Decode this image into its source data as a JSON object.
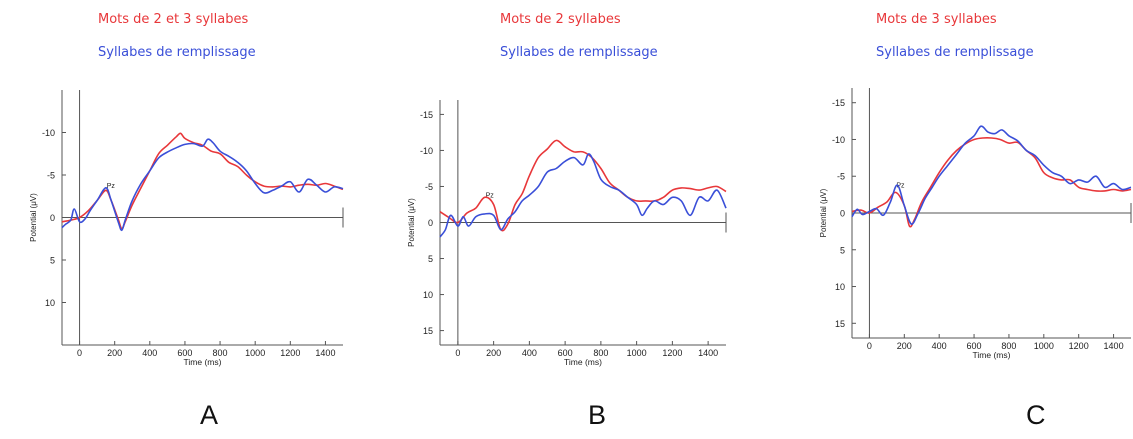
{
  "chart_data": [
    {
      "type": "line",
      "panel_letter": "A",
      "legend": [
        "Mots de 2 et 3 syllabes",
        "Syllabes de remplissage"
      ],
      "electrode_label": "Pz",
      "xlabel": "Time (ms)",
      "ylabel": "Potential (μV)",
      "xlim": [
        -100,
        1500
      ],
      "ylim": [
        -15,
        15
      ],
      "y_inverted": true,
      "xticks": [
        0,
        200,
        400,
        600,
        800,
        1000,
        1200,
        1400
      ],
      "yticks": [
        -10,
        -5,
        0,
        5,
        10
      ],
      "series": [
        {
          "name": "Mots de 2 et 3 syllabes",
          "color": "#e8373a",
          "x": [
            -100,
            -50,
            0,
            50,
            100,
            150,
            180,
            220,
            240,
            260,
            300,
            350,
            400,
            450,
            500,
            550,
            575,
            600,
            650,
            700,
            750,
            800,
            850,
            900,
            950,
            1000,
            1050,
            1100,
            1150,
            1200,
            1250,
            1300,
            1350,
            1400,
            1450,
            1500
          ],
          "y": [
            0.5,
            0.3,
            0,
            -0.8,
            -2.0,
            -3.2,
            -2.0,
            0.2,
            1.3,
            0.5,
            -1.5,
            -3.5,
            -5.5,
            -7.5,
            -8.5,
            -9.5,
            -9.9,
            -9.3,
            -8.8,
            -8.5,
            -7.8,
            -7.5,
            -6.5,
            -6.0,
            -5.0,
            -4.2,
            -3.7,
            -3.6,
            -3.7,
            -3.6,
            -3.8,
            -3.9,
            -3.8,
            -4.0,
            -3.7,
            -3.3
          ]
        },
        {
          "name": "Syllabes de remplissage",
          "color": "#3a4fd8",
          "x": [
            -100,
            -80,
            -50,
            -30,
            0,
            30,
            60,
            100,
            150,
            180,
            220,
            240,
            260,
            300,
            350,
            400,
            450,
            500,
            550,
            600,
            650,
            700,
            730,
            760,
            800,
            850,
            900,
            950,
            1000,
            1050,
            1100,
            1150,
            1200,
            1250,
            1300,
            1350,
            1400,
            1450,
            1500
          ],
          "y": [
            1.2,
            0.8,
            0.3,
            -1.0,
            0.5,
            0.2,
            -0.8,
            -2.0,
            -3.5,
            -2.0,
            0.5,
            1.5,
            0.3,
            -2.0,
            -4.0,
            -5.5,
            -7.0,
            -7.7,
            -8.2,
            -8.6,
            -8.7,
            -8.4,
            -9.2,
            -8.8,
            -7.8,
            -7.2,
            -6.5,
            -5.5,
            -4.0,
            -2.9,
            -3.2,
            -3.7,
            -4.2,
            -3.0,
            -4.5,
            -3.8,
            -3.0,
            -3.6,
            -3.4
          ]
        }
      ]
    },
    {
      "type": "line",
      "panel_letter": "B",
      "legend": [
        "Mots de 2 syllabes",
        "Syllabes de remplissage"
      ],
      "electrode_label": "Pz",
      "xlabel": "Time (ms)",
      "ylabel": "Potential (μV)",
      "xlim": [
        -100,
        1500
      ],
      "ylim": [
        -17,
        17
      ],
      "y_inverted": true,
      "xticks": [
        0,
        200,
        400,
        600,
        800,
        1000,
        1200,
        1400
      ],
      "yticks": [
        -15,
        -10,
        -5,
        0,
        5,
        10,
        15
      ],
      "series": [
        {
          "name": "Mots de 2 syllabes",
          "color": "#e8373a",
          "x": [
            -100,
            -50,
            0,
            50,
            100,
            150,
            200,
            240,
            280,
            320,
            360,
            400,
            450,
            500,
            550,
            600,
            650,
            700,
            750,
            800,
            850,
            900,
            950,
            1000,
            1050,
            1100,
            1150,
            1200,
            1250,
            1300,
            1350,
            1400,
            1450,
            1500
          ],
          "y": [
            -1.5,
            -0.7,
            0,
            -1.3,
            -2.0,
            -3.5,
            -2.5,
            1.0,
            0.2,
            -2.5,
            -4.0,
            -6.5,
            -9.0,
            -10.2,
            -11.4,
            -10.5,
            -9.8,
            -9.8,
            -9.0,
            -7.5,
            -5.5,
            -4.5,
            -3.5,
            -3.0,
            -3.0,
            -3.0,
            -3.5,
            -4.5,
            -4.8,
            -4.7,
            -4.5,
            -4.8,
            -5.0,
            -4.3
          ]
        },
        {
          "name": "Syllabes de remplissage",
          "color": "#3a4fd8",
          "x": [
            -100,
            -70,
            -40,
            0,
            30,
            60,
            100,
            150,
            200,
            240,
            280,
            320,
            360,
            400,
            450,
            500,
            550,
            600,
            650,
            700,
            730,
            760,
            800,
            850,
            900,
            950,
            1000,
            1030,
            1060,
            1100,
            1150,
            1200,
            1250,
            1300,
            1350,
            1400,
            1450,
            1500
          ],
          "y": [
            2.0,
            1.0,
            -1.0,
            0.5,
            -0.8,
            0.5,
            -0.8,
            -1.2,
            -1.0,
            1.0,
            -0.5,
            -1.5,
            -3.0,
            -3.8,
            -5.0,
            -7.0,
            -7.5,
            -8.5,
            -9.0,
            -8.0,
            -9.5,
            -8.5,
            -6.0,
            -5.0,
            -4.5,
            -3.5,
            -2.5,
            -1.0,
            -2.0,
            -3.0,
            -2.5,
            -3.5,
            -3.0,
            -1.0,
            -3.5,
            -3.0,
            -4.5,
            -2.0
          ]
        }
      ]
    },
    {
      "type": "line",
      "panel_letter": "C",
      "legend": [
        "Mots de 3 syllabes",
        "Syllabes de remplissage"
      ],
      "electrode_label": "Pz",
      "xlabel": "Time (ms)",
      "ylabel": "Potential (μV)",
      "xlim": [
        -100,
        1500
      ],
      "ylim": [
        -17,
        17
      ],
      "y_inverted": true,
      "xticks": [
        0,
        200,
        400,
        600,
        800,
        1000,
        1200,
        1400
      ],
      "yticks": [
        -15,
        -10,
        -5,
        0,
        5,
        10,
        15
      ],
      "series": [
        {
          "name": "Mots de 3 syllabes",
          "color": "#e8373a",
          "x": [
            -100,
            -50,
            0,
            50,
            100,
            150,
            200,
            230,
            260,
            300,
            350,
            400,
            450,
            500,
            550,
            600,
            650,
            700,
            750,
            800,
            850,
            900,
            950,
            1000,
            1050,
            1100,
            1150,
            1200,
            1250,
            1300,
            1350,
            1400,
            1450,
            1500
          ],
          "y": [
            -0.2,
            -0.4,
            0,
            -0.8,
            -1.5,
            -2.8,
            -1.0,
            1.8,
            0.8,
            -1.5,
            -3.5,
            -5.5,
            -7.2,
            -8.5,
            -9.4,
            -10.0,
            -10.2,
            -10.2,
            -10.0,
            -9.5,
            -9.6,
            -8.5,
            -7.5,
            -5.5,
            -4.8,
            -4.5,
            -4.5,
            -3.5,
            -3.2,
            -3.0,
            -3.0,
            -3.2,
            -3.0,
            -3.2
          ]
        },
        {
          "name": "Syllabes de remplissage",
          "color": "#3a4fd8",
          "x": [
            -100,
            -70,
            -40,
            0,
            40,
            80,
            120,
            160,
            200,
            240,
            280,
            320,
            360,
            400,
            450,
            500,
            550,
            600,
            640,
            680,
            720,
            760,
            800,
            850,
            900,
            950,
            1000,
            1050,
            1100,
            1150,
            1200,
            1250,
            1300,
            1350,
            1400,
            1450,
            1500
          ],
          "y": [
            0.5,
            -0.5,
            0.2,
            -0.2,
            -0.6,
            0.3,
            -1.5,
            -3.8,
            -1.0,
            1.5,
            0.0,
            -2.0,
            -3.5,
            -5.0,
            -6.5,
            -8.0,
            -9.5,
            -10.5,
            -11.8,
            -11.0,
            -10.8,
            -11.3,
            -10.5,
            -9.8,
            -8.5,
            -7.8,
            -6.5,
            -5.5,
            -5.0,
            -4.0,
            -4.5,
            -4.2,
            -5.0,
            -3.5,
            -4.0,
            -3.2,
            -3.5
          ]
        }
      ]
    }
  ]
}
